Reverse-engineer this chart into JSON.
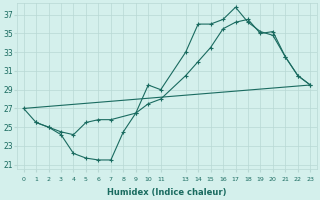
{
  "xlabel": "Humidex (Indice chaleur)",
  "bg_color": "#d4f0ec",
  "line_color": "#1a6b60",
  "grid_color": "#b8d8d4",
  "ylim": [
    20.5,
    38.2
  ],
  "xlim": [
    -0.5,
    23.5
  ],
  "yticks": [
    21,
    23,
    25,
    27,
    29,
    31,
    33,
    35,
    37
  ],
  "xticks": [
    0,
    1,
    2,
    3,
    4,
    5,
    6,
    7,
    8,
    9,
    10,
    11,
    13,
    14,
    15,
    16,
    17,
    18,
    19,
    20,
    21,
    22,
    23
  ],
  "xtick_labels": [
    "0",
    "1",
    "2",
    "3",
    "4",
    "5",
    "6",
    "7",
    "8",
    "9",
    "10",
    "11",
    "13",
    "14",
    "15",
    "16",
    "17",
    "18",
    "19",
    "20",
    "21",
    "22",
    "23"
  ],
  "line1_x": [
    0,
    1,
    2,
    3,
    4,
    5,
    6,
    7,
    8,
    9,
    10,
    11,
    13,
    14,
    15,
    16,
    17,
    18,
    19,
    20,
    21,
    22,
    23
  ],
  "line1_y": [
    27.0,
    25.5,
    25.0,
    24.2,
    22.2,
    21.7,
    21.5,
    21.5,
    24.5,
    26.5,
    29.5,
    29.0,
    33.0,
    36.0,
    36.0,
    36.5,
    37.8,
    36.2,
    35.2,
    34.8,
    32.5,
    30.5,
    29.5
  ],
  "line2_x": [
    1,
    2,
    3,
    4,
    5,
    6,
    7,
    9,
    10,
    11,
    13,
    14,
    15,
    16,
    17,
    18,
    19,
    20,
    21,
    22,
    23
  ],
  "line2_y": [
    25.5,
    25.0,
    24.5,
    24.2,
    25.5,
    25.8,
    25.8,
    26.5,
    27.5,
    28.0,
    30.5,
    32.0,
    33.5,
    35.5,
    36.2,
    36.5,
    35.0,
    35.2,
    32.5,
    30.5,
    29.5
  ],
  "line3_x": [
    0,
    23
  ],
  "line3_y": [
    27.0,
    29.5
  ]
}
